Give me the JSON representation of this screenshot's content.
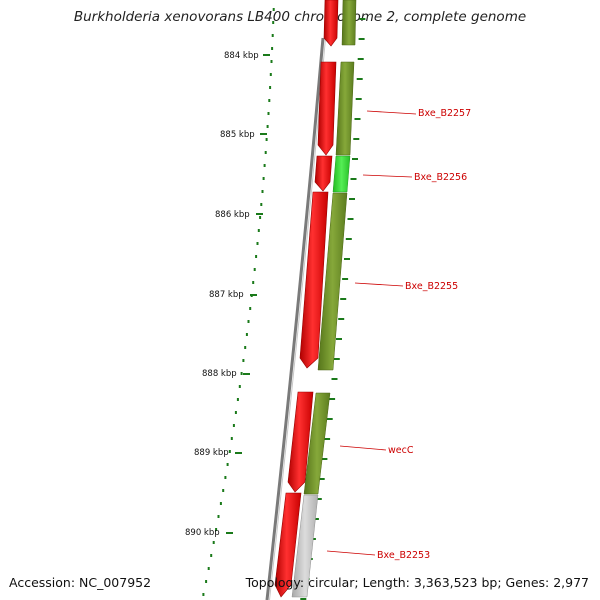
{
  "title": "Burkholderia xenovorans LB400 chromosome 2, complete genome",
  "accession": "Accession: NC_007952",
  "summary": "Topology: circular; Length: 3,363,523 bp; Genes: 2,977",
  "ticks": [
    "884 kbp",
    "885 kbp",
    "886 kbp",
    "887 kbp",
    "888 kbp",
    "889 kbp",
    "890 kbp"
  ],
  "genes": [
    "Bxe_B2257",
    "Bxe_B2256",
    "Bxe_B2255",
    "wecC",
    "Bxe_B2253"
  ],
  "colors": {
    "forward_cds": "#ff0000",
    "feature_olive": "#6b8e23",
    "feature_green": "#33dd33",
    "feature_gray": "#c0c0c0",
    "backbone": "#808080",
    "gc_ticks": "#1a7a1a",
    "label": "#cc0000"
  }
}
